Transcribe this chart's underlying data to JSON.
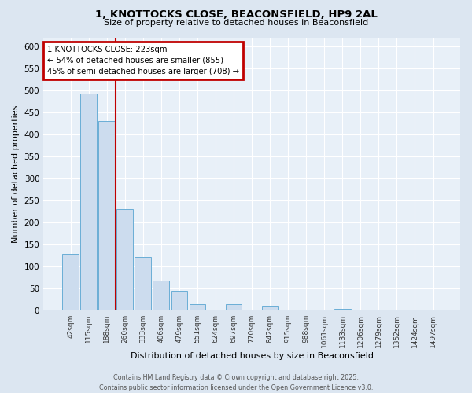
{
  "title": "1, KNOTTOCKS CLOSE, BEACONSFIELD, HP9 2AL",
  "subtitle": "Size of property relative to detached houses in Beaconsfield",
  "xlabel": "Distribution of detached houses by size in Beaconsfield",
  "ylabel": "Number of detached properties",
  "bar_labels": [
    "42sqm",
    "115sqm",
    "188sqm",
    "260sqm",
    "333sqm",
    "406sqm",
    "479sqm",
    "551sqm",
    "624sqm",
    "697sqm",
    "770sqm",
    "842sqm",
    "915sqm",
    "988sqm",
    "1061sqm",
    "1133sqm",
    "1206sqm",
    "1279sqm",
    "1352sqm",
    "1424sqm",
    "1497sqm"
  ],
  "bar_values": [
    128,
    492,
    430,
    230,
    122,
    68,
    44,
    15,
    0,
    15,
    0,
    10,
    0,
    0,
    0,
    4,
    0,
    0,
    0,
    1,
    1
  ],
  "bar_color": "#ccdcee",
  "bar_edge_color": "#6aaed6",
  "vline_color": "#c00000",
  "annotation_text": "1 KNOTTOCKS CLOSE: 223sqm\n← 54% of detached houses are smaller (855)\n45% of semi-detached houses are larger (708) →",
  "annotation_box_color": "#c00000",
  "annotation_text_color": "#000000",
  "ylim": [
    0,
    620
  ],
  "yticks": [
    0,
    50,
    100,
    150,
    200,
    250,
    300,
    350,
    400,
    450,
    500,
    550,
    600
  ],
  "footer_line1": "Contains HM Land Registry data © Crown copyright and database right 2025.",
  "footer_line2": "Contains public sector information licensed under the Open Government Licence v3.0.",
  "background_color": "#dce6f1",
  "plot_background_color": "#e8f0f8"
}
